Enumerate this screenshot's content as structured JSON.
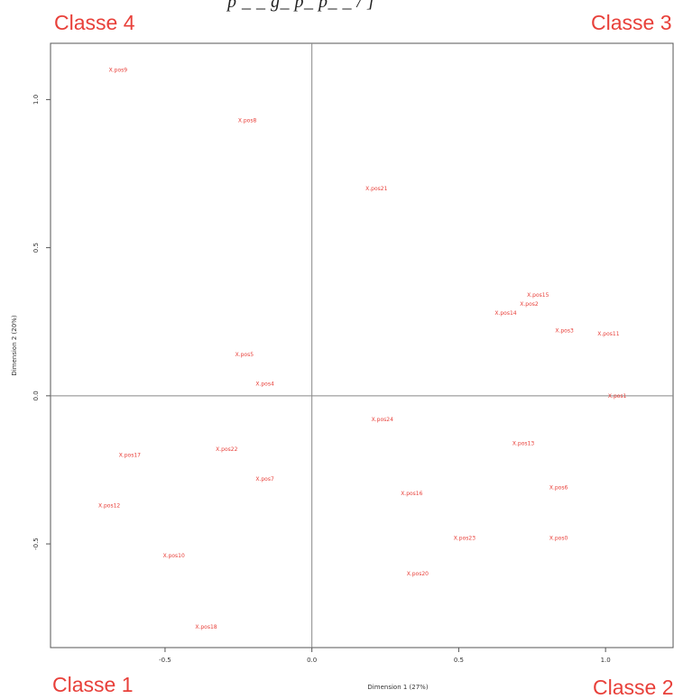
{
  "header": {
    "fragment_text": "p _ _ g_ p_ p_ _ / ]"
  },
  "corner_labels": {
    "top_left": "Classe 4",
    "top_right": "Classe 3",
    "bottom_left": "Classe 1",
    "bottom_right": "Classe 2",
    "color": "#e8403a"
  },
  "chart_data": {
    "type": "scatter",
    "xlabel": "Dimension 1 (27%)",
    "ylabel": "Dimension 2 (20%)",
    "xlim": [
      -0.89,
      1.23
    ],
    "ylim": [
      -0.85,
      1.19
    ],
    "xticks": [
      -0.5,
      0.0,
      0.5,
      1.0
    ],
    "xtick_labels": [
      "-0.5",
      "0.0",
      "0.5",
      "1.0"
    ],
    "yticks": [
      -0.5,
      0.0,
      0.5,
      1.0
    ],
    "ytick_labels": [
      "-0.5",
      "0.0",
      "0.5",
      "1.0"
    ],
    "reference_lines": {
      "x": 0,
      "y": 0
    },
    "point_color": "#e8403a",
    "points": [
      {
        "label": "X.pos9",
        "x": -0.66,
        "y": 1.1
      },
      {
        "label": "X.pos8",
        "x": -0.22,
        "y": 0.93
      },
      {
        "label": "X.pos21",
        "x": 0.22,
        "y": 0.7
      },
      {
        "label": "X.pos15",
        "x": 0.77,
        "y": 0.34
      },
      {
        "label": "X.pos2",
        "x": 0.74,
        "y": 0.31
      },
      {
        "label": "X.pos14",
        "x": 0.66,
        "y": 0.28
      },
      {
        "label": "X.pos3",
        "x": 0.86,
        "y": 0.22
      },
      {
        "label": "X.pos11",
        "x": 1.01,
        "y": 0.21
      },
      {
        "label": "X.pos5",
        "x": -0.23,
        "y": 0.14
      },
      {
        "label": "X.pos4",
        "x": -0.16,
        "y": 0.04
      },
      {
        "label": "X.pos1",
        "x": 1.04,
        "y": 0.0
      },
      {
        "label": "X.pos24",
        "x": 0.24,
        "y": -0.08
      },
      {
        "label": "X.pos13",
        "x": 0.72,
        "y": -0.16
      },
      {
        "label": "X.pos22",
        "x": -0.29,
        "y": -0.18
      },
      {
        "label": "X.pos17",
        "x": -0.62,
        "y": -0.2
      },
      {
        "label": "X.pos7",
        "x": -0.16,
        "y": -0.28
      },
      {
        "label": "X.pos6",
        "x": 0.84,
        "y": -0.31
      },
      {
        "label": "X.pos16",
        "x": 0.34,
        "y": -0.33
      },
      {
        "label": "X.pos12",
        "x": -0.69,
        "y": -0.37
      },
      {
        "label": "X.pos23",
        "x": 0.52,
        "y": -0.48
      },
      {
        "label": "X.pos0",
        "x": 0.84,
        "y": -0.48
      },
      {
        "label": "X.pos10",
        "x": -0.47,
        "y": -0.54
      },
      {
        "label": "X.pos20",
        "x": 0.36,
        "y": -0.6
      },
      {
        "label": "X.pos18",
        "x": -0.36,
        "y": -0.78
      }
    ]
  }
}
